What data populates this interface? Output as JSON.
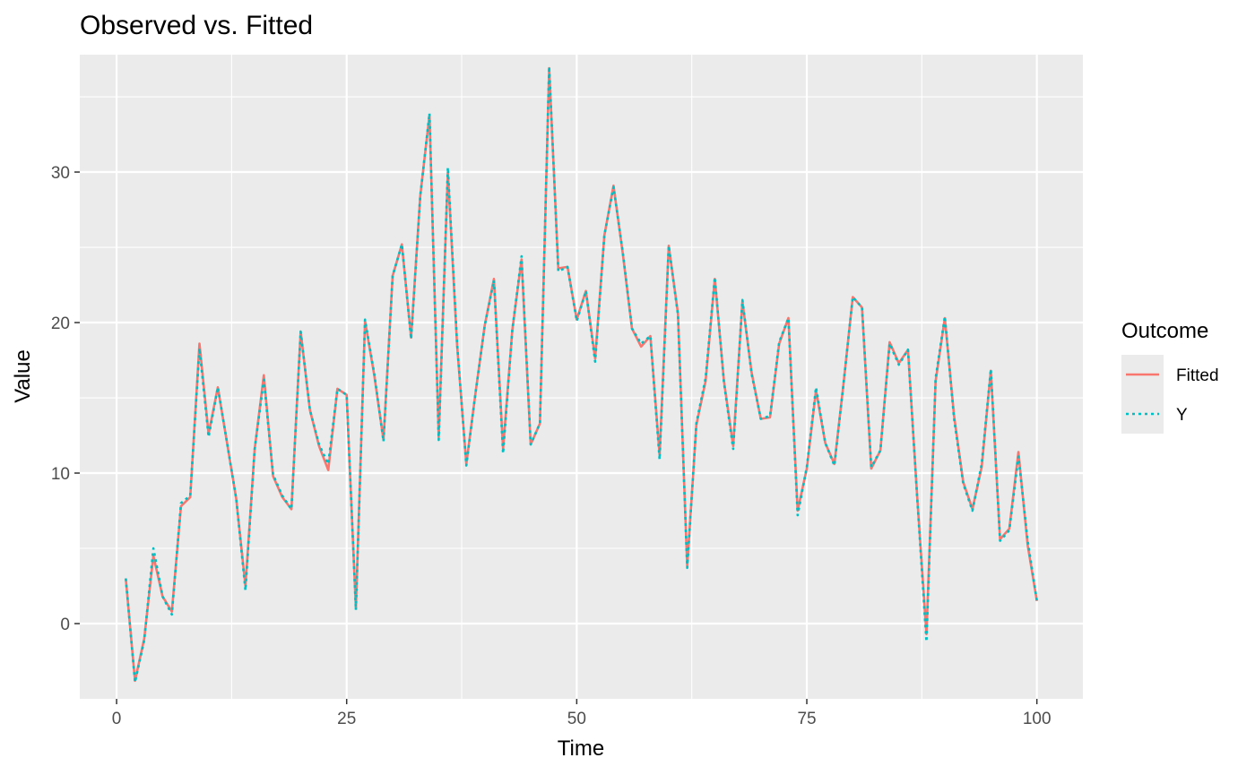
{
  "chart_data": {
    "type": "line",
    "title": "Observed vs. Fitted",
    "xlabel": "Time",
    "ylabel": "Value",
    "xlim": [
      -4,
      105
    ],
    "ylim": [
      -5,
      37.8
    ],
    "xticks": [
      0,
      25,
      50,
      75,
      100
    ],
    "xtick_labels": [
      "0",
      "25",
      "50",
      "75",
      "100"
    ],
    "yticks": [
      0,
      10,
      20,
      30
    ],
    "ytick_labels": [
      "0",
      "10",
      "20",
      "30"
    ],
    "grid": true,
    "legend": {
      "title": "Outcome",
      "placement": "right",
      "entries": [
        "Fitted",
        "Y"
      ]
    },
    "x": [
      1,
      2,
      3,
      4,
      5,
      6,
      7,
      8,
      9,
      10,
      11,
      12,
      13,
      14,
      15,
      16,
      17,
      18,
      19,
      20,
      21,
      22,
      23,
      24,
      25,
      26,
      27,
      28,
      29,
      30,
      31,
      32,
      33,
      34,
      35,
      36,
      37,
      38,
      39,
      40,
      41,
      42,
      43,
      44,
      45,
      46,
      47,
      48,
      49,
      50,
      51,
      52,
      53,
      54,
      55,
      56,
      57,
      58,
      59,
      60,
      61,
      62,
      63,
      64,
      65,
      66,
      67,
      68,
      69,
      70,
      71,
      72,
      73,
      74,
      75,
      76,
      77,
      78,
      79,
      80,
      81,
      82,
      83,
      84,
      85,
      86,
      87,
      88,
      89,
      90,
      91,
      92,
      93,
      94,
      95,
      96,
      97,
      98,
      99,
      100
    ],
    "series": [
      {
        "name": "Fitted",
        "color": "#F8766D",
        "dash": "solid",
        "values": [
          3.0,
          -3.8,
          -1.0,
          4.5,
          1.8,
          0.8,
          7.8,
          8.4,
          18.6,
          12.6,
          15.7,
          12.0,
          8.3,
          2.5,
          11.6,
          16.5,
          9.8,
          8.4,
          7.6,
          19.4,
          14.2,
          11.8,
          10.2,
          15.6,
          15.2,
          1.0,
          20.1,
          16.5,
          12.2,
          23.1,
          25.2,
          19.0,
          28.4,
          33.8,
          12.4,
          30.0,
          18.5,
          10.6,
          15.3,
          19.8,
          22.9,
          11.6,
          19.5,
          24.2,
          11.9,
          13.3,
          36.9,
          23.6,
          23.7,
          20.2,
          22.1,
          17.6,
          25.8,
          29.1,
          24.6,
          19.6,
          18.4,
          19.1,
          11.2,
          25.1,
          20.6,
          3.8,
          13.2,
          16.1,
          22.9,
          16.1,
          11.8,
          21.4,
          16.7,
          13.6,
          13.7,
          18.6,
          20.3,
          7.5,
          10.3,
          15.5,
          12.0,
          10.6,
          16.0,
          21.7,
          21.0,
          10.3,
          11.5,
          18.7,
          17.3,
          18.2,
          8.4,
          -0.7,
          16.1,
          20.3,
          13.8,
          9.4,
          7.6,
          10.4,
          16.8,
          5.6,
          6.3,
          11.4,
          5.2,
          1.5
        ]
      },
      {
        "name": "Y",
        "color": "#00BFC4",
        "dash": "dotted",
        "values": [
          3.0,
          -3.9,
          -1.1,
          5.0,
          1.8,
          0.6,
          8.0,
          8.5,
          18.3,
          12.4,
          15.7,
          12.0,
          8.3,
          2.2,
          11.6,
          16.2,
          9.9,
          8.5,
          7.6,
          19.4,
          14.2,
          11.9,
          10.6,
          15.6,
          15.2,
          0.9,
          20.2,
          16.6,
          12.1,
          23.1,
          25.2,
          18.9,
          28.4,
          33.9,
          12.2,
          30.3,
          18.6,
          10.5,
          15.3,
          19.8,
          22.8,
          11.3,
          19.5,
          24.4,
          11.9,
          13.3,
          37.0,
          23.4,
          23.7,
          20.1,
          22.1,
          17.4,
          25.8,
          29.0,
          24.7,
          19.6,
          18.6,
          19.1,
          10.9,
          25.1,
          20.5,
          3.7,
          13.3,
          16.3,
          23.0,
          16.0,
          11.6,
          21.5,
          16.6,
          13.6,
          13.8,
          18.7,
          20.3,
          7.2,
          10.4,
          15.7,
          12.0,
          10.5,
          16.0,
          21.7,
          21.0,
          10.4,
          11.5,
          18.6,
          17.2,
          18.2,
          8.3,
          -1.2,
          16.3,
          20.4,
          13.6,
          9.3,
          7.5,
          10.6,
          16.9,
          5.5,
          6.2,
          11.1,
          5.5,
          1.5
        ]
      }
    ]
  }
}
